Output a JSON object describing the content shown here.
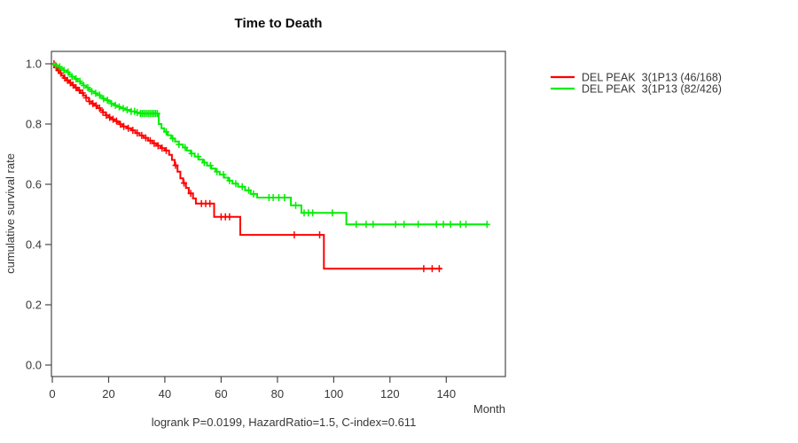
{
  "chart_data": {
    "type": "line",
    "chart_style": "kaplan-meier-step-curve",
    "title": "Time to Death",
    "xlabel": "Month",
    "ylabel": "cumulative survival rate",
    "annotation": "logrank P=0.0199, HazardRatio=1.5, C-index=0.611",
    "xlim": [
      0,
      161
    ],
    "ylim": [
      0,
      1.04
    ],
    "xticks": [
      0,
      20,
      40,
      60,
      80,
      100,
      120,
      140
    ],
    "xtick_labels": [
      "0",
      "20",
      "40",
      "60",
      "80",
      "100",
      "120",
      "140"
    ],
    "yticks": [
      0.0,
      0.2,
      0.4,
      0.6,
      0.8,
      1.0
    ],
    "ytick_labels": [
      "0.0",
      "0.2",
      "0.4",
      "0.6",
      "0.8",
      "1.0"
    ],
    "grid": false,
    "legend_position": "right-outside",
    "series": [
      {
        "name": "DEL PEAK  3(1P13 (46/168)",
        "color": "#ff0000",
        "end_month": 138.5,
        "steps": [
          [
            0,
            1.0
          ],
          [
            0.8,
            0.988
          ],
          [
            1.6,
            0.978
          ],
          [
            2.4,
            0.969
          ],
          [
            3.2,
            0.961
          ],
          [
            4,
            0.953
          ],
          [
            5,
            0.945
          ],
          [
            6,
            0.937
          ],
          [
            7,
            0.929
          ],
          [
            8,
            0.921
          ],
          [
            9,
            0.912
          ],
          [
            10,
            0.903
          ],
          [
            11,
            0.895
          ],
          [
            12,
            0.887
          ],
          [
            13,
            0.875
          ],
          [
            14,
            0.868
          ],
          [
            15,
            0.861
          ],
          [
            16,
            0.853
          ],
          [
            17,
            0.846
          ],
          [
            18,
            0.839
          ],
          [
            19,
            0.829
          ],
          [
            20,
            0.822
          ],
          [
            21,
            0.816
          ],
          [
            22,
            0.81
          ],
          [
            23,
            0.805
          ],
          [
            24,
            0.799
          ],
          [
            25,
            0.792
          ],
          [
            26.5,
            0.786
          ],
          [
            28,
            0.779
          ],
          [
            29.5,
            0.77
          ],
          [
            31,
            0.762
          ],
          [
            32.5,
            0.754
          ],
          [
            34,
            0.745
          ],
          [
            35.5,
            0.736
          ],
          [
            37,
            0.728
          ],
          [
            38.5,
            0.72
          ],
          [
            40,
            0.712
          ],
          [
            41.5,
            0.698
          ],
          [
            42.5,
            0.681
          ],
          [
            43.5,
            0.663
          ],
          [
            44.5,
            0.642
          ],
          [
            45.5,
            0.62
          ],
          [
            46.5,
            0.604
          ],
          [
            47.5,
            0.588
          ],
          [
            48.5,
            0.57
          ],
          [
            50,
            0.553
          ],
          [
            51,
            0.536
          ],
          [
            57.5,
            0.492
          ],
          [
            66.8,
            0.432
          ],
          [
            96.5,
            0.32
          ]
        ],
        "censor_months": [
          0.6,
          1.4,
          2.2,
          3.0,
          4.4,
          5.4,
          6.4,
          7.4,
          8.4,
          9.6,
          10.8,
          12,
          13.2,
          14.4,
          15.6,
          16.8,
          18,
          19.2,
          20.4,
          21.6,
          22.8,
          24.2,
          25.4,
          27,
          28.6,
          30.2,
          31.8,
          33.2,
          34.8,
          36.2,
          37.6,
          39,
          40.5,
          43.8,
          46.8,
          49.2,
          53,
          54.5,
          56,
          60,
          61.5,
          63,
          86,
          95,
          132,
          135,
          137.5
        ]
      },
      {
        "name": "DEL PEAK  3(1P13 (82/426)",
        "color": "#00ee00",
        "end_month": 154.5,
        "steps": [
          [
            0,
            1.0
          ],
          [
            1,
            0.995
          ],
          [
            2,
            0.99
          ],
          [
            3,
            0.984
          ],
          [
            4,
            0.978
          ],
          [
            5,
            0.972
          ],
          [
            6,
            0.964
          ],
          [
            7,
            0.957
          ],
          [
            8,
            0.95
          ],
          [
            9,
            0.942
          ],
          [
            10,
            0.935
          ],
          [
            11,
            0.928
          ],
          [
            12,
            0.921
          ],
          [
            13,
            0.914
          ],
          [
            14,
            0.908
          ],
          [
            15,
            0.902
          ],
          [
            16,
            0.896
          ],
          [
            17,
            0.89
          ],
          [
            18,
            0.884
          ],
          [
            19,
            0.879
          ],
          [
            20,
            0.874
          ],
          [
            21,
            0.868
          ],
          [
            22,
            0.862
          ],
          [
            23,
            0.857
          ],
          [
            24,
            0.852
          ],
          [
            26,
            0.847
          ],
          [
            28,
            0.842
          ],
          [
            30,
            0.838
          ],
          [
            31,
            0.835
          ],
          [
            37.8,
            0.8
          ],
          [
            38.8,
            0.786
          ],
          [
            39.8,
            0.774
          ],
          [
            41,
            0.763
          ],
          [
            42.3,
            0.752
          ],
          [
            43.6,
            0.742
          ],
          [
            45,
            0.732
          ],
          [
            46.4,
            0.722
          ],
          [
            47.8,
            0.712
          ],
          [
            49.2,
            0.702
          ],
          [
            50.6,
            0.692
          ],
          [
            52,
            0.682
          ],
          [
            53.5,
            0.672
          ],
          [
            55,
            0.662
          ],
          [
            56.5,
            0.652
          ],
          [
            58,
            0.642
          ],
          [
            59.5,
            0.632
          ],
          [
            61,
            0.622
          ],
          [
            62.5,
            0.612
          ],
          [
            64,
            0.602
          ],
          [
            66,
            0.592
          ],
          [
            68.5,
            0.58
          ],
          [
            70.5,
            0.568
          ],
          [
            72.8,
            0.556
          ],
          [
            84.8,
            0.53
          ],
          [
            88.5,
            0.505
          ],
          [
            104.5,
            0.467
          ]
        ],
        "censor_months": [
          1.2,
          2.6,
          4.2,
          5.6,
          7,
          8.4,
          9.8,
          11.2,
          12.6,
          14,
          15.4,
          16.8,
          18.2,
          19.6,
          21,
          22.4,
          23.8,
          25.2,
          26.6,
          28,
          29.2,
          30.2,
          31.3,
          31.9,
          32.5,
          33.1,
          33.7,
          34.3,
          34.9,
          35.5,
          36.1,
          36.7,
          37.3,
          40.5,
          42.8,
          45,
          47.2,
          49.5,
          51.8,
          54,
          56.2,
          58.5,
          60.8,
          63,
          65.2,
          67.5,
          69.8,
          71.5,
          77,
          78.5,
          80.5,
          82.5,
          86.5,
          89.5,
          91,
          92.5,
          99.5,
          108,
          111.5,
          114,
          122,
          125,
          130,
          136.5,
          139,
          141.5,
          145,
          147,
          154.5
        ]
      }
    ]
  },
  "style": {
    "frame_color": "#4a4a4a",
    "text_color": "#373737",
    "background": "#ffffff"
  }
}
